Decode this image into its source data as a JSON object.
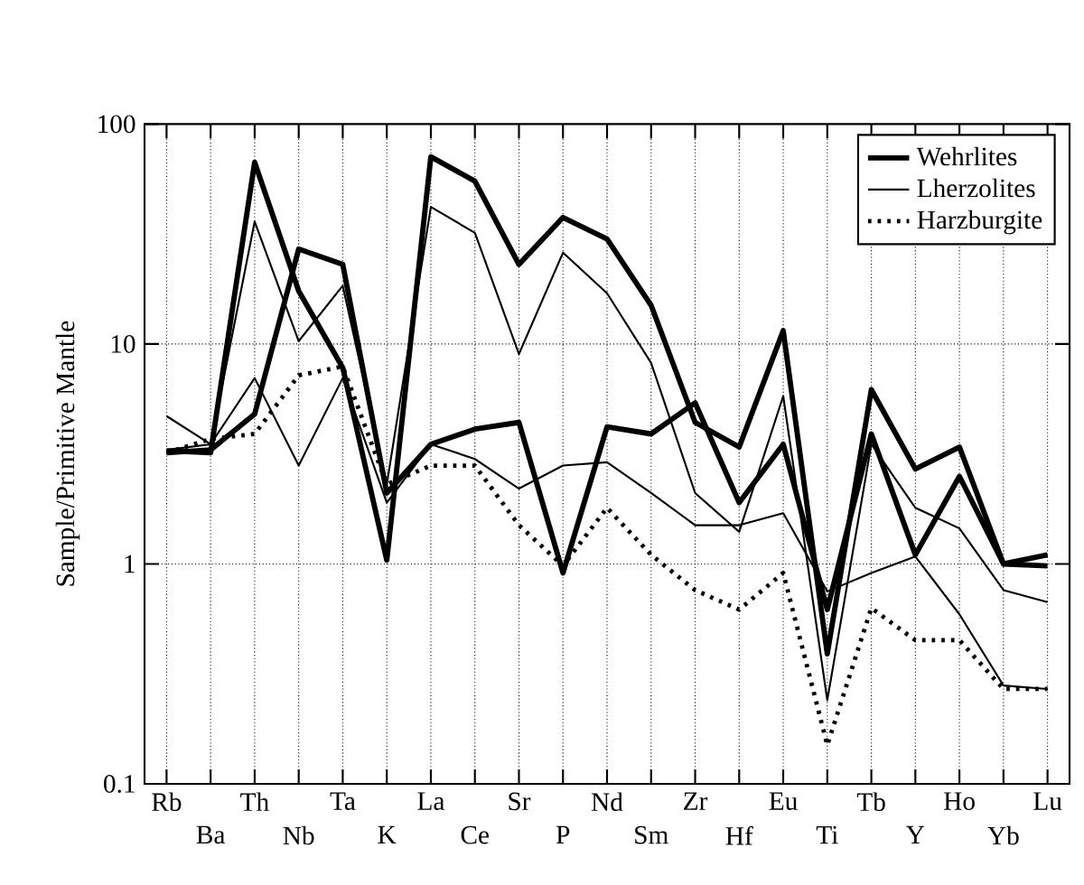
{
  "chart_data": {
    "type": "line",
    "ylabel": "Sample/Primitive Mantle",
    "categories": [
      "Rb",
      "Ba",
      "Th",
      "Nb",
      "Ta",
      "K",
      "La",
      "Ce",
      "Sr",
      "P",
      "Nd",
      "Sm",
      "Zr",
      "Hf",
      "Eu",
      "Ti",
      "Tb",
      "Y",
      "Ho",
      "Yb",
      "Lu"
    ],
    "log": true,
    "ylim": [
      0.1,
      100
    ],
    "yticks": [
      0.1,
      1,
      10,
      100
    ],
    "grid": true,
    "legend": "top right",
    "marker": "none",
    "series": [
      {
        "name": "Wehrlites",
        "color": "#000000",
        "line_style": "solid",
        "values": [
          3.27,
          3.2,
          67,
          17.4,
          7.8,
          1.04,
          71,
          55,
          23,
          37.6,
          30,
          15,
          4.4,
          3.4,
          11.5,
          0.39,
          6.2,
          2.7,
          3.4,
          1.0,
          1.1
        ]
      },
      {
        "color": "#000000",
        "line_style": "solid",
        "values": [
          3.2,
          3.3,
          4.8,
          27,
          23,
          2.1,
          3.5,
          4.1,
          4.4,
          0.91,
          4.2,
          3.9,
          5.4,
          1.9,
          3.5,
          0.62,
          3.9,
          1.1,
          2.5,
          1.0,
          0.98
        ]
      },
      {
        "name": "Lherzolites",
        "color": "#000000",
        "line_style": "solid",
        "values": [
          4.7,
          3.5,
          36,
          10.3,
          18.4,
          2.3,
          42,
          32,
          9,
          26,
          17,
          8.2,
          2.1,
          1.4,
          5.8,
          0.24,
          3.5,
          1.8,
          1.45,
          0.76,
          0.67
        ]
      },
      {
        "color": "#000000",
        "line_style": "solid",
        "values": [
          3.3,
          3.5,
          7.0,
          2.8,
          7.0,
          1.9,
          3.5,
          3.0,
          2.2,
          2.8,
          2.9,
          2.1,
          1.5,
          1.5,
          1.7,
          0.75,
          0.91,
          1.08,
          0.59,
          0.28,
          0.27
        ]
      },
      {
        "name": "Harzburgite",
        "color": "#000000",
        "line_style": "dotted",
        "values": [
          3.2,
          3.7,
          3.9,
          7.2,
          7.9,
          2.3,
          2.8,
          2.8,
          1.5,
          0.98,
          1.8,
          1.1,
          0.76,
          0.62,
          0.91,
          0.15,
          0.63,
          0.45,
          0.45,
          0.27,
          0.27
        ]
      }
    ]
  }
}
